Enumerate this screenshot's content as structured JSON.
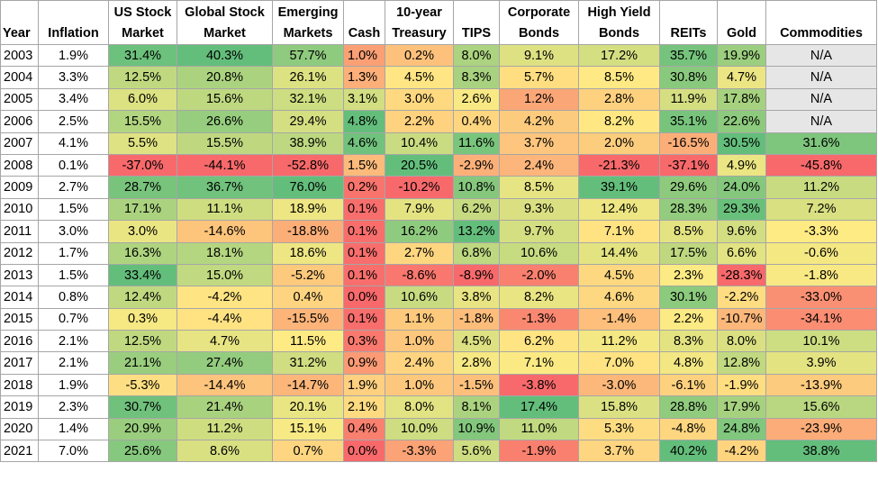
{
  "table": {
    "headers": [
      {
        "key": "year",
        "line1": "Year",
        "line2": ""
      },
      {
        "key": "inflation",
        "line1": "Inflation",
        "line2": ""
      },
      {
        "key": "us_stock",
        "line1": "US Stock",
        "line2": "Market"
      },
      {
        "key": "global_stock",
        "line1": "Global Stock",
        "line2": "Market"
      },
      {
        "key": "emerging",
        "line1": "Emerging",
        "line2": "Markets"
      },
      {
        "key": "cash",
        "line1": "Cash",
        "line2": ""
      },
      {
        "key": "treasury",
        "line1": "10-year",
        "line2": "Treasury"
      },
      {
        "key": "tips",
        "line1": "TIPS",
        "line2": ""
      },
      {
        "key": "corporate",
        "line1": "Corporate",
        "line2": "Bonds"
      },
      {
        "key": "high_yield",
        "line1": "High Yield",
        "line2": "Bonds"
      },
      {
        "key": "reits",
        "line1": "REITs",
        "line2": ""
      },
      {
        "key": "gold",
        "line1": "Gold",
        "line2": ""
      },
      {
        "key": "commodities",
        "line1": "Commodities",
        "line2": ""
      }
    ],
    "rows": [
      {
        "year": "2003",
        "inflation": "1.9%",
        "cells": [
          "31.4%",
          "40.3%",
          "57.7%",
          "1.0%",
          "0.2%",
          "8.0%",
          "9.1%",
          "17.2%",
          "35.7%",
          "19.9%",
          "N/A"
        ]
      },
      {
        "year": "2004",
        "inflation": "3.3%",
        "cells": [
          "12.5%",
          "20.8%",
          "26.1%",
          "1.3%",
          "4.5%",
          "8.3%",
          "5.7%",
          "8.5%",
          "30.8%",
          "4.7%",
          "N/A"
        ]
      },
      {
        "year": "2005",
        "inflation": "3.4%",
        "cells": [
          "6.0%",
          "15.6%",
          "32.1%",
          "3.1%",
          "3.0%",
          "2.6%",
          "1.2%",
          "2.8%",
          "11.9%",
          "17.8%",
          "N/A"
        ]
      },
      {
        "year": "2006",
        "inflation": "2.5%",
        "cells": [
          "15.5%",
          "26.6%",
          "29.4%",
          "4.8%",
          "2.2%",
          "0.4%",
          "4.2%",
          "8.2%",
          "35.1%",
          "22.6%",
          "N/A"
        ]
      },
      {
        "year": "2007",
        "inflation": "4.1%",
        "cells": [
          "5.5%",
          "15.5%",
          "38.9%",
          "4.6%",
          "10.4%",
          "11.6%",
          "3.7%",
          "2.0%",
          "-16.5%",
          "30.5%",
          "31.6%"
        ]
      },
      {
        "year": "2008",
        "inflation": "0.1%",
        "cells": [
          "-37.0%",
          "-44.1%",
          "-52.8%",
          "1.5%",
          "20.5%",
          "-2.9%",
          "2.4%",
          "-21.3%",
          "-37.1%",
          "4.9%",
          "-45.8%"
        ]
      },
      {
        "year": "2009",
        "inflation": "2.7%",
        "cells": [
          "28.7%",
          "36.7%",
          "76.0%",
          "0.2%",
          "-10.2%",
          "10.8%",
          "8.5%",
          "39.1%",
          "29.6%",
          "24.0%",
          "11.2%"
        ]
      },
      {
        "year": "2010",
        "inflation": "1.5%",
        "cells": [
          "17.1%",
          "11.1%",
          "18.9%",
          "0.1%",
          "7.9%",
          "6.2%",
          "9.3%",
          "12.4%",
          "28.3%",
          "29.3%",
          "7.2%"
        ]
      },
      {
        "year": "2011",
        "inflation": "3.0%",
        "cells": [
          "3.0%",
          "-14.6%",
          "-18.8%",
          "0.1%",
          "16.2%",
          "13.2%",
          "9.7%",
          "7.1%",
          "8.5%",
          "9.6%",
          "-3.3%"
        ]
      },
      {
        "year": "2012",
        "inflation": "1.7%",
        "cells": [
          "16.3%",
          "18.1%",
          "18.6%",
          "0.1%",
          "2.7%",
          "6.8%",
          "10.6%",
          "14.4%",
          "17.5%",
          "6.6%",
          "-0.6%"
        ]
      },
      {
        "year": "2013",
        "inflation": "1.5%",
        "cells": [
          "33.4%",
          "15.0%",
          "-5.2%",
          "0.1%",
          "-8.6%",
          "-8.9%",
          "-2.0%",
          "4.5%",
          "2.3%",
          "-28.3%",
          "-1.8%"
        ]
      },
      {
        "year": "2014",
        "inflation": "0.8%",
        "cells": [
          "12.4%",
          "-4.2%",
          "0.4%",
          "0.0%",
          "10.6%",
          "3.8%",
          "8.2%",
          "4.6%",
          "30.1%",
          "-2.2%",
          "-33.0%"
        ]
      },
      {
        "year": "2015",
        "inflation": "0.7%",
        "cells": [
          "0.3%",
          "-4.4%",
          "-15.5%",
          "0.1%",
          "1.1%",
          "-1.8%",
          "-1.3%",
          "-1.4%",
          "2.2%",
          "-10.7%",
          "-34.1%"
        ]
      },
      {
        "year": "2016",
        "inflation": "2.1%",
        "cells": [
          "12.5%",
          "4.7%",
          "11.5%",
          "0.3%",
          "1.0%",
          "4.5%",
          "6.2%",
          "11.2%",
          "8.3%",
          "8.0%",
          "10.1%"
        ]
      },
      {
        "year": "2017",
        "inflation": "2.1%",
        "cells": [
          "21.1%",
          "27.4%",
          "31.2%",
          "0.9%",
          "2.4%",
          "2.8%",
          "7.1%",
          "7.0%",
          "4.8%",
          "12.8%",
          "3.9%"
        ]
      },
      {
        "year": "2018",
        "inflation": "1.9%",
        "cells": [
          "-5.3%",
          "-14.4%",
          "-14.7%",
          "1.9%",
          "1.0%",
          "-1.5%",
          "-3.8%",
          "-3.0%",
          "-6.1%",
          "-1.9%",
          "-13.9%"
        ]
      },
      {
        "year": "2019",
        "inflation": "2.3%",
        "cells": [
          "30.7%",
          "21.4%",
          "20.1%",
          "2.1%",
          "8.0%",
          "8.1%",
          "17.4%",
          "15.8%",
          "28.8%",
          "17.9%",
          "15.6%"
        ]
      },
      {
        "year": "2020",
        "inflation": "1.4%",
        "cells": [
          "20.9%",
          "11.2%",
          "15.1%",
          "0.4%",
          "10.0%",
          "10.9%",
          "11.0%",
          "5.3%",
          "-4.8%",
          "24.8%",
          "-23.9%"
        ]
      },
      {
        "year": "2021",
        "inflation": "7.0%",
        "cells": [
          "25.6%",
          "8.6%",
          "0.7%",
          "0.0%",
          "-3.3%",
          "5.6%",
          "-1.9%",
          "3.7%",
          "40.2%",
          "-4.2%",
          "38.8%"
        ]
      }
    ],
    "color_scale": {
      "low": "#f8696b",
      "mid": "#ffeb84",
      "high": "#63be7b",
      "na": "#e6e6e6"
    }
  }
}
